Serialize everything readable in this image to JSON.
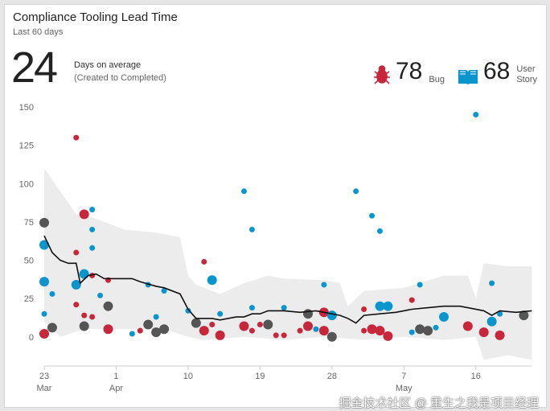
{
  "widget": {
    "title": "Compliance Tooling Lead Time",
    "subtitle": "Last 60 days",
    "average": "24",
    "average_label": "Days on average",
    "average_sub": "(Created to Completed)"
  },
  "legend": [
    {
      "name": "Bug",
      "count": "78",
      "color": "#c8263b",
      "icon": "bug-icon"
    },
    {
      "name_line1": "User",
      "name_line2": "Story",
      "count": "68",
      "color": "#0a96cc",
      "icon": "book-icon"
    }
  ],
  "watermark": "掘金技术社区 @ 重生之我是项目经理",
  "chart_data": {
    "type": "scatter",
    "title": "Compliance Tooling Lead Time",
    "ylim": [
      -19,
      150
    ],
    "xlim_days": [
      0,
      61
    ],
    "y_ticks": [
      "0",
      "25",
      "50",
      "75",
      "100",
      "125",
      "150"
    ],
    "y_tick_values": [
      0,
      25,
      50,
      75,
      100,
      125,
      150
    ],
    "x_ticks": [
      {
        "day": 0,
        "l1": "23",
        "l2": "Mar"
      },
      {
        "day": 9,
        "l1": "1",
        "l2": "Apr"
      },
      {
        "day": 18,
        "l1": "10",
        "l2": ""
      },
      {
        "day": 27,
        "l1": "19",
        "l2": ""
      },
      {
        "day": 36,
        "l1": "28",
        "l2": ""
      },
      {
        "day": 45,
        "l1": "7",
        "l2": "May"
      },
      {
        "day": 54,
        "l1": "16",
        "l2": ""
      }
    ],
    "colors": {
      "bug": "#c8263b",
      "story": "#0a96cc",
      "mixed": "#555555",
      "band": "#ececec",
      "trend": "#111111"
    },
    "points": [
      [
        0,
        74.5,
        "mixed",
        1
      ],
      [
        0,
        60,
        "story",
        1
      ],
      [
        0,
        36,
        "story",
        1
      ],
      [
        0,
        15,
        "story",
        0
      ],
      [
        0,
        2,
        "bug",
        1
      ],
      [
        1,
        6,
        "mixed",
        1
      ],
      [
        1,
        28,
        "story",
        0
      ],
      [
        4,
        130,
        "bug",
        0
      ],
      [
        4,
        55,
        "bug",
        0
      ],
      [
        4,
        21,
        "bug",
        0
      ],
      [
        4,
        34,
        "story",
        1
      ],
      [
        5,
        80,
        "bug",
        1
      ],
      [
        5,
        41,
        "story",
        1
      ],
      [
        5,
        14,
        "bug",
        0
      ],
      [
        5,
        7,
        "mixed",
        1
      ],
      [
        6,
        83,
        "story",
        0
      ],
      [
        6,
        70,
        "story",
        0
      ],
      [
        6,
        58,
        "story",
        0
      ],
      [
        6,
        40,
        "bug",
        0
      ],
      [
        6,
        13,
        "bug",
        0
      ],
      [
        7,
        27,
        "story",
        0
      ],
      [
        8,
        37,
        "bug",
        0
      ],
      [
        8,
        20,
        "mixed",
        1
      ],
      [
        8,
        5,
        "bug",
        1
      ],
      [
        11,
        2,
        "story",
        0
      ],
      [
        12,
        4,
        "bug",
        0
      ],
      [
        13,
        8,
        "mixed",
        1
      ],
      [
        13,
        34,
        "story",
        0
      ],
      [
        14,
        13,
        "story",
        0
      ],
      [
        14,
        3,
        "mixed",
        1
      ],
      [
        15,
        5,
        "mixed",
        1
      ],
      [
        15,
        30,
        "story",
        0
      ],
      [
        18,
        17,
        "story",
        0
      ],
      [
        19,
        9,
        "mixed",
        1
      ],
      [
        20,
        49,
        "bug",
        0
      ],
      [
        20,
        4,
        "bug",
        1
      ],
      [
        21,
        37,
        "story",
        1
      ],
      [
        21,
        8,
        "bug",
        0
      ],
      [
        22,
        1,
        "bug",
        1
      ],
      [
        22,
        15,
        "story",
        0
      ],
      [
        25,
        95,
        "story",
        0
      ],
      [
        25,
        7,
        "bug",
        1
      ],
      [
        26,
        70,
        "story",
        0
      ],
      [
        26,
        19,
        "story",
        0
      ],
      [
        26,
        4,
        "bug",
        0
      ],
      [
        27,
        8,
        "bug",
        0
      ],
      [
        28,
        8,
        "mixed",
        1
      ],
      [
        29,
        1,
        "bug",
        0
      ],
      [
        30,
        19,
        "story",
        0
      ],
      [
        30,
        1,
        "bug",
        0
      ],
      [
        32,
        4,
        "bug",
        0
      ],
      [
        33,
        15,
        "mixed",
        1
      ],
      [
        33,
        7,
        "bug",
        1
      ],
      [
        34,
        5,
        "story",
        0
      ],
      [
        35,
        34,
        "story",
        0
      ],
      [
        35,
        16,
        "bug",
        1
      ],
      [
        35,
        4,
        "bug",
        1
      ],
      [
        36,
        14,
        "story",
        1
      ],
      [
        36,
        0,
        "mixed",
        1
      ],
      [
        39,
        95,
        "story",
        0
      ],
      [
        40,
        18,
        "bug",
        0
      ],
      [
        40,
        4,
        "bug",
        0
      ],
      [
        41,
        79,
        "story",
        0
      ],
      [
        41,
        5,
        "bug",
        1
      ],
      [
        42,
        69,
        "story",
        0
      ],
      [
        42,
        20,
        "story",
        1
      ],
      [
        43,
        20,
        "story",
        1
      ],
      [
        42,
        4,
        "bug",
        1
      ],
      [
        43,
        0.5,
        "bug",
        1
      ],
      [
        46,
        24,
        "bug",
        0
      ],
      [
        46,
        3,
        "story",
        0
      ],
      [
        47,
        34,
        "story",
        0
      ],
      [
        47,
        5,
        "mixed",
        1
      ],
      [
        48,
        4,
        "mixed",
        1
      ],
      [
        49,
        6,
        "story",
        0
      ],
      [
        50,
        13,
        "story",
        1
      ],
      [
        53,
        7,
        "bug",
        1
      ],
      [
        54,
        145,
        "story",
        0
      ],
      [
        55,
        3,
        "bug",
        1
      ],
      [
        56,
        35,
        "story",
        0
      ],
      [
        56,
        10,
        "story",
        1
      ],
      [
        57,
        1,
        "bug",
        1
      ],
      [
        57,
        15,
        "story",
        0
      ],
      [
        60,
        14,
        "mixed",
        1
      ]
    ],
    "trend": [
      [
        0,
        66
      ],
      [
        1,
        55
      ],
      [
        2,
        50
      ],
      [
        3,
        48
      ],
      [
        4,
        48
      ],
      [
        4.5,
        35
      ],
      [
        5.5,
        40
      ],
      [
        6.5,
        41
      ],
      [
        7.5,
        38
      ],
      [
        9,
        38
      ],
      [
        11,
        38
      ],
      [
        12,
        36
      ],
      [
        14,
        33
      ],
      [
        15,
        32
      ],
      [
        17,
        28
      ],
      [
        18,
        18
      ],
      [
        19,
        12
      ],
      [
        21,
        12
      ],
      [
        22,
        11
      ],
      [
        24,
        13
      ],
      [
        25,
        13
      ],
      [
        26,
        15
      ],
      [
        27,
        15
      ],
      [
        28,
        17
      ],
      [
        30,
        17
      ],
      [
        32,
        16
      ],
      [
        34,
        17
      ],
      [
        35,
        16
      ],
      [
        37,
        14
      ],
      [
        38,
        12
      ],
      [
        39,
        9
      ],
      [
        40,
        14
      ],
      [
        42,
        15
      ],
      [
        44,
        16
      ],
      [
        45,
        17
      ],
      [
        46,
        18
      ],
      [
        48,
        19
      ],
      [
        50,
        20
      ],
      [
        52,
        20
      ],
      [
        53,
        19
      ],
      [
        55,
        17
      ],
      [
        56,
        14
      ],
      [
        57,
        17
      ],
      [
        59,
        16
      ],
      [
        61,
        17
      ]
    ],
    "band_upper": [
      [
        0,
        110
      ],
      [
        2,
        95
      ],
      [
        4,
        80
      ],
      [
        6,
        78
      ],
      [
        10,
        70
      ],
      [
        14,
        68
      ],
      [
        17,
        65
      ],
      [
        18,
        40
      ],
      [
        19,
        34
      ],
      [
        22,
        28
      ],
      [
        25,
        35
      ],
      [
        28,
        40
      ],
      [
        30,
        38
      ],
      [
        35,
        37
      ],
      [
        37,
        35
      ],
      [
        38,
        20
      ],
      [
        40,
        30
      ],
      [
        45,
        32
      ],
      [
        50,
        40
      ],
      [
        53,
        40
      ],
      [
        54,
        25
      ],
      [
        55,
        48
      ],
      [
        58,
        46
      ],
      [
        61,
        46
      ]
    ],
    "band_lower": [
      [
        0,
        10
      ],
      [
        2,
        0
      ],
      [
        5,
        5
      ],
      [
        10,
        5
      ],
      [
        15,
        5
      ],
      [
        18,
        0
      ],
      [
        20,
        -2
      ],
      [
        25,
        0
      ],
      [
        30,
        -2
      ],
      [
        35,
        0
      ],
      [
        40,
        -2
      ],
      [
        45,
        0
      ],
      [
        50,
        -2
      ],
      [
        54,
        0
      ],
      [
        55,
        -15
      ],
      [
        58,
        -12
      ],
      [
        61,
        -15
      ]
    ]
  }
}
